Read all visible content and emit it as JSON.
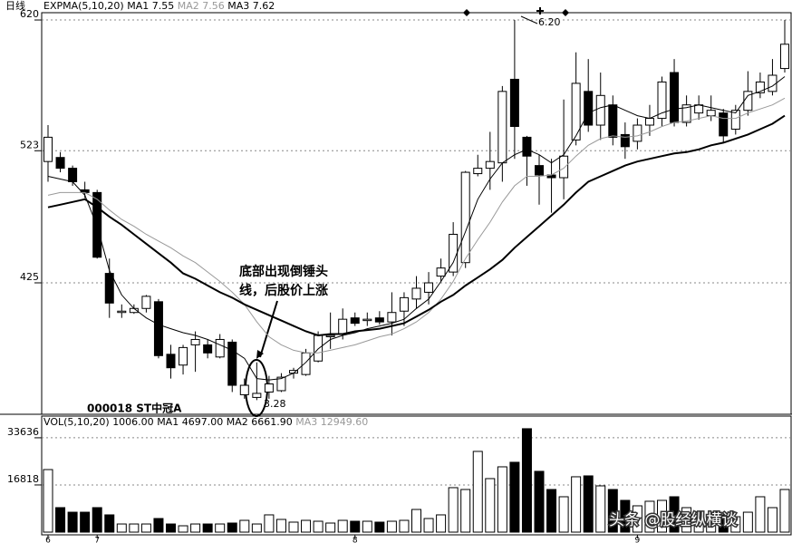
{
  "chart_data": [
    {
      "type": "candlestick",
      "header": "日线",
      "indicator": "EXPMA(5,10,20)",
      "stock": "000018 ST中冠A",
      "annotation": [
        "底部出现倒锤头",
        "线，后股价上涨"
      ],
      "high_label": "6.20",
      "low_label": "3.28",
      "up_color": "#ffffff",
      "down_color": "#000000",
      "ylim": [
        327.5,
        625.4
      ],
      "yticks": [
        620,
        523,
        425
      ],
      "grid": true,
      "open": [
        515,
        518,
        510,
        494,
        492,
        432,
        403,
        403,
        406,
        411,
        372,
        364,
        379,
        379,
        370,
        381,
        342,
        340,
        344,
        345,
        358,
        357,
        367,
        385,
        387,
        399,
        397,
        399,
        396,
        404,
        413,
        418,
        430,
        433,
        440,
        506,
        510,
        514,
        576,
        533,
        512,
        505,
        503,
        531,
        567,
        542,
        557,
        535,
        530,
        542,
        547,
        581,
        544,
        551,
        549,
        551,
        539,
        553,
        566,
        567,
        584
      ],
      "high": [
        542,
        522,
        512,
        500,
        494,
        443,
        409,
        409,
        416,
        413,
        379,
        379,
        389,
        383,
        387,
        383,
        354,
        366,
        356,
        358,
        362,
        376,
        389,
        403,
        406,
        403,
        403,
        404,
        418,
        418,
        430,
        433,
        443,
        470,
        508,
        520,
        537,
        571,
        620,
        534,
        520,
        517,
        561,
        596,
        591,
        581,
        564,
        544,
        547,
        557,
        578,
        591,
        564,
        564,
        564,
        554,
        557,
        582,
        581,
        591,
        620
      ],
      "low": [
        500,
        507,
        497,
        488,
        443,
        399,
        399,
        402,
        403,
        369,
        354,
        357,
        359,
        369,
        369,
        344,
        339,
        338,
        339,
        344,
        354,
        356,
        366,
        376,
        383,
        393,
        393,
        394,
        386,
        393,
        406,
        409,
        426,
        430,
        436,
        504,
        494,
        500,
        517,
        497,
        483,
        477,
        487,
        527,
        537,
        531,
        527,
        517,
        524,
        534,
        541,
        541,
        541,
        546,
        545,
        529,
        535,
        549,
        562,
        564,
        581
      ],
      "close": [
        533,
        510,
        500,
        492,
        444,
        410,
        404,
        406,
        415,
        371,
        362,
        377,
        383,
        373,
        383,
        349,
        349,
        343,
        350,
        355,
        360,
        373,
        386,
        386,
        398,
        395,
        398,
        396,
        403,
        414,
        421,
        425,
        436,
        461,
        507,
        510,
        515,
        567,
        541,
        519,
        505,
        503,
        519,
        573,
        542,
        564,
        533,
        526,
        542,
        547,
        574,
        544,
        557,
        557,
        553,
        534,
        553,
        567,
        574,
        579,
        602
      ],
      "series": [
        {
          "name": "MA1",
          "legend_value": "7.55",
          "color": "#000000",
          "line_width": 1,
          "values": [
            504,
            502,
            500,
            490,
            467,
            434,
            416,
            406,
            399,
            394,
            391,
            388,
            386,
            383,
            379,
            375,
            369,
            354,
            353,
            354,
            358,
            366,
            376,
            383,
            386,
            388,
            391,
            393,
            395,
            398,
            406,
            413,
            426,
            440,
            463,
            487,
            502,
            514,
            520,
            524,
            520,
            514,
            520,
            534,
            551,
            555,
            557,
            553,
            549,
            547,
            551,
            554,
            555,
            557,
            555,
            553,
            551,
            564,
            567,
            571,
            578
          ]
        },
        {
          "name": "MA2",
          "legend_value": "7.56",
          "color": "#999999",
          "line_width": 1,
          "values": [
            490,
            492,
            492,
            492,
            487,
            479,
            472,
            467,
            461,
            456,
            451,
            445,
            440,
            433,
            426,
            418,
            409,
            396,
            385,
            379,
            375,
            373,
            373,
            375,
            377,
            379,
            382,
            385,
            387,
            391,
            396,
            403,
            413,
            426,
            443,
            457,
            470,
            485,
            497,
            504,
            504,
            505,
            510,
            519,
            527,
            532,
            534,
            533,
            534,
            537,
            541,
            544,
            545,
            547,
            549,
            547,
            547,
            551,
            554,
            557,
            562
          ]
        },
        {
          "name": "MA3",
          "legend_value": "7.62",
          "color": "#000000",
          "line_width": 2,
          "values": [
            481,
            483,
            485,
            487,
            481,
            474,
            468,
            461,
            454,
            447,
            440,
            432,
            428,
            423,
            418,
            414,
            409,
            405,
            401,
            397,
            393,
            389,
            386,
            387,
            387,
            389,
            390,
            391,
            393,
            395,
            400,
            405,
            411,
            416,
            423,
            429,
            435,
            442,
            451,
            459,
            467,
            475,
            483,
            492,
            500,
            504,
            508,
            512,
            515,
            517,
            519,
            521,
            522,
            524,
            527,
            529,
            532,
            535,
            539,
            543,
            549
          ]
        }
      ]
    },
    {
      "type": "volume",
      "indicator": "VOL(5,10,20)",
      "current": "1006.00",
      "legend": [
        {
          "name": "MA1",
          "label": "4697.00",
          "color": "#000000"
        },
        {
          "name": "MA2",
          "label": "6661.90",
          "color": "#000000"
        },
        {
          "name": "MA3",
          "label": "12949.60",
          "color": "#999999"
        }
      ],
      "ylim": [
        0,
        40400
      ],
      "yticks": [
        33636,
        16818
      ],
      "grid": true,
      "watermark": "头条 @股经纵横谈",
      "categories": [
        "6",
        null,
        null,
        null,
        "7",
        null,
        null,
        null,
        null,
        null,
        null,
        null,
        null,
        null,
        null,
        null,
        null,
        null,
        null,
        null,
        null,
        null,
        null,
        null,
        null,
        "8",
        null,
        null,
        null,
        null,
        null,
        null,
        null,
        null,
        null,
        null,
        null,
        null,
        null,
        null,
        null,
        null,
        null,
        null,
        null,
        null,
        null,
        null,
        "9",
        null,
        null,
        null,
        null,
        null,
        null,
        null,
        null,
        null,
        null,
        null,
        null
      ],
      "values": [
        22300,
        8730,
        7100,
        7100,
        8730,
        6150,
        2900,
        2900,
        2900,
        4850,
        2900,
        2260,
        2900,
        2900,
        2900,
        3230,
        4200,
        2900,
        6150,
        4530,
        3560,
        4200,
        3880,
        3230,
        4200,
        3880,
        3880,
        3560,
        3880,
        4200,
        8080,
        4850,
        6150,
        15850,
        15200,
        28780,
        19080,
        23280,
        24900,
        36870,
        21670,
        15200,
        12610,
        19730,
        20050,
        16490,
        15200,
        11320,
        9380,
        11000,
        11320,
        12610,
        8730,
        6790,
        6150,
        6150,
        5500,
        7100,
        12610,
        8730,
        15200
      ]
    }
  ]
}
